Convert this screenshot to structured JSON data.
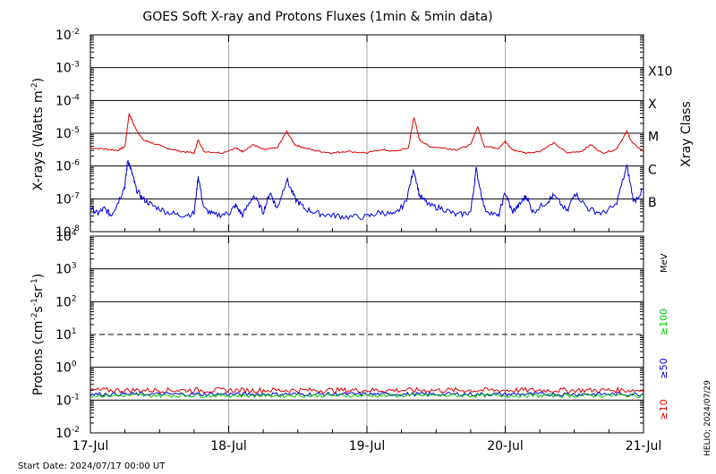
{
  "title": "GOES Soft X-ray and Protons Fluxes   (1min & 5min data)",
  "start_date": "Start Date: 2024/07/17 00:00 UT",
  "helio_stamp": "HELIO: 2024/07/29",
  "colors": {
    "xray_long": "#dd0000",
    "xray_short": "#0000dd",
    "p10": "#dd0000",
    "p50": "#0000dd",
    "p100": "#00cc00",
    "grid": "#000000",
    "day_line": "#aaaaaa"
  },
  "chart_data": [
    {
      "type": "line",
      "ylabel_main": "X-rays (Watts m",
      "ylabel_sup": "-2",
      "ylabel_end": ")",
      "yscale": "log",
      "ylim_exp": [
        -8,
        -2
      ],
      "ytick_exponents": [
        -8,
        -7,
        -6,
        -5,
        -4,
        -3,
        -2
      ],
      "right_axis_title": "Xray Class",
      "class_labels": [
        {
          "label": "X10",
          "exp": -3
        },
        {
          "label": "X",
          "exp": -4
        },
        {
          "label": "M",
          "exp": -5
        },
        {
          "label": "C",
          "exp": -6
        },
        {
          "label": "B",
          "exp": -7
        }
      ],
      "x_day_range": [
        0,
        4
      ],
      "series": [
        {
          "key": "long",
          "points": [
            [
              0.0,
              -5.45
            ],
            [
              0.1,
              -5.48
            ],
            [
              0.2,
              -5.52
            ],
            [
              0.25,
              -5.4
            ],
            [
              0.28,
              -4.4
            ],
            [
              0.32,
              -4.8
            ],
            [
              0.38,
              -5.2
            ],
            [
              0.45,
              -5.3
            ],
            [
              0.55,
              -5.45
            ],
            [
              0.65,
              -5.55
            ],
            [
              0.75,
              -5.6
            ],
            [
              0.78,
              -5.2
            ],
            [
              0.82,
              -5.55
            ],
            [
              0.95,
              -5.6
            ],
            [
              1.05,
              -5.45
            ],
            [
              1.1,
              -5.55
            ],
            [
              1.18,
              -5.35
            ],
            [
              1.25,
              -5.5
            ],
            [
              1.35,
              -5.45
            ],
            [
              1.42,
              -4.95
            ],
            [
              1.48,
              -5.35
            ],
            [
              1.55,
              -5.45
            ],
            [
              1.65,
              -5.55
            ],
            [
              1.75,
              -5.6
            ],
            [
              1.85,
              -5.55
            ],
            [
              2.0,
              -5.6
            ],
            [
              2.1,
              -5.5
            ],
            [
              2.2,
              -5.55
            ],
            [
              2.3,
              -5.45
            ],
            [
              2.34,
              -4.5
            ],
            [
              2.38,
              -5.2
            ],
            [
              2.45,
              -5.4
            ],
            [
              2.55,
              -5.45
            ],
            [
              2.65,
              -5.5
            ],
            [
              2.75,
              -5.35
            ],
            [
              2.8,
              -4.8
            ],
            [
              2.85,
              -5.4
            ],
            [
              2.95,
              -5.45
            ],
            [
              3.0,
              -5.25
            ],
            [
              3.05,
              -5.5
            ],
            [
              3.15,
              -5.6
            ],
            [
              3.25,
              -5.55
            ],
            [
              3.35,
              -5.3
            ],
            [
              3.45,
              -5.6
            ],
            [
              3.55,
              -5.55
            ],
            [
              3.62,
              -5.35
            ],
            [
              3.7,
              -5.6
            ],
            [
              3.8,
              -5.5
            ],
            [
              3.88,
              -4.95
            ],
            [
              3.92,
              -5.3
            ],
            [
              4.0,
              -5.55
            ]
          ]
        },
        {
          "key": "short",
          "points": [
            [
              0.0,
              -7.25
            ],
            [
              0.05,
              -7.45
            ],
            [
              0.1,
              -7.3
            ],
            [
              0.15,
              -7.5
            ],
            [
              0.2,
              -7.1
            ],
            [
              0.25,
              -6.6
            ],
            [
              0.27,
              -5.8
            ],
            [
              0.3,
              -6.2
            ],
            [
              0.33,
              -6.7
            ],
            [
              0.38,
              -7.0
            ],
            [
              0.45,
              -7.2
            ],
            [
              0.55,
              -7.4
            ],
            [
              0.65,
              -7.5
            ],
            [
              0.75,
              -7.45
            ],
            [
              0.78,
              -6.3
            ],
            [
              0.82,
              -7.3
            ],
            [
              0.9,
              -7.5
            ],
            [
              1.0,
              -7.45
            ],
            [
              1.05,
              -7.2
            ],
            [
              1.1,
              -7.5
            ],
            [
              1.18,
              -6.9
            ],
            [
              1.25,
              -7.4
            ],
            [
              1.3,
              -6.8
            ],
            [
              1.35,
              -7.3
            ],
            [
              1.42,
              -6.4
            ],
            [
              1.48,
              -7.0
            ],
            [
              1.55,
              -7.3
            ],
            [
              1.65,
              -7.45
            ],
            [
              1.75,
              -7.5
            ],
            [
              1.85,
              -7.55
            ],
            [
              2.0,
              -7.55
            ],
            [
              2.1,
              -7.4
            ],
            [
              2.2,
              -7.5
            ],
            [
              2.28,
              -7.1
            ],
            [
              2.34,
              -6.1
            ],
            [
              2.38,
              -6.9
            ],
            [
              2.45,
              -7.2
            ],
            [
              2.55,
              -7.3
            ],
            [
              2.65,
              -7.5
            ],
            [
              2.75,
              -7.4
            ],
            [
              2.79,
              -6.1
            ],
            [
              2.85,
              -7.3
            ],
            [
              2.95,
              -7.55
            ],
            [
              3.0,
              -6.8
            ],
            [
              3.05,
              -7.4
            ],
            [
              3.1,
              -7.2
            ],
            [
              3.15,
              -6.9
            ],
            [
              3.2,
              -7.4
            ],
            [
              3.3,
              -7.1
            ],
            [
              3.35,
              -6.9
            ],
            [
              3.45,
              -7.4
            ],
            [
              3.5,
              -6.8
            ],
            [
              3.6,
              -7.3
            ],
            [
              3.7,
              -7.45
            ],
            [
              3.8,
              -7.2
            ],
            [
              3.88,
              -6.0
            ],
            [
              3.93,
              -7.1
            ],
            [
              4.0,
              -6.7
            ]
          ]
        }
      ]
    },
    {
      "type": "line",
      "ylabel_main": "Protons (cm",
      "ylabel_sup1": "-2",
      "ylabel_mid": "s",
      "ylabel_sup2": "-1",
      "ylabel_mid2": "sr",
      "ylabel_sup3": "-1",
      "ylabel_end": ")",
      "yscale": "log",
      "ylim_exp": [
        -2,
        4
      ],
      "ytick_exponents": [
        -2,
        -1,
        0,
        1,
        2,
        3,
        4
      ],
      "ytick_labels": [
        "10",
        "10",
        "10",
        "10",
        "10",
        "10",
        "10"
      ],
      "ytick_sups": [
        "-2",
        "-1",
        "0",
        "1",
        "2",
        "3",
        "4"
      ],
      "threshold_exp": 1,
      "right_unit": "MeV",
      "energy_labels": [
        {
          "label": "≥100",
          "color": "#00cc00"
        },
        {
          "label": "≥50",
          "color": "#0000dd"
        },
        {
          "label": "≥10",
          "color": "#dd0000"
        }
      ],
      "x_day_range": [
        0,
        4
      ],
      "series": [
        {
          "key": "p10",
          "level_exp": -0.7,
          "jitter": 0.08
        },
        {
          "key": "p50",
          "level_exp": -0.82,
          "jitter": 0.06
        },
        {
          "key": "p100",
          "level_exp": -0.86,
          "jitter": 0.06
        }
      ]
    }
  ],
  "x_tick_labels": [
    "17-Jul",
    "18-Jul",
    "19-Jul",
    "20-Jul",
    "21-Jul"
  ]
}
